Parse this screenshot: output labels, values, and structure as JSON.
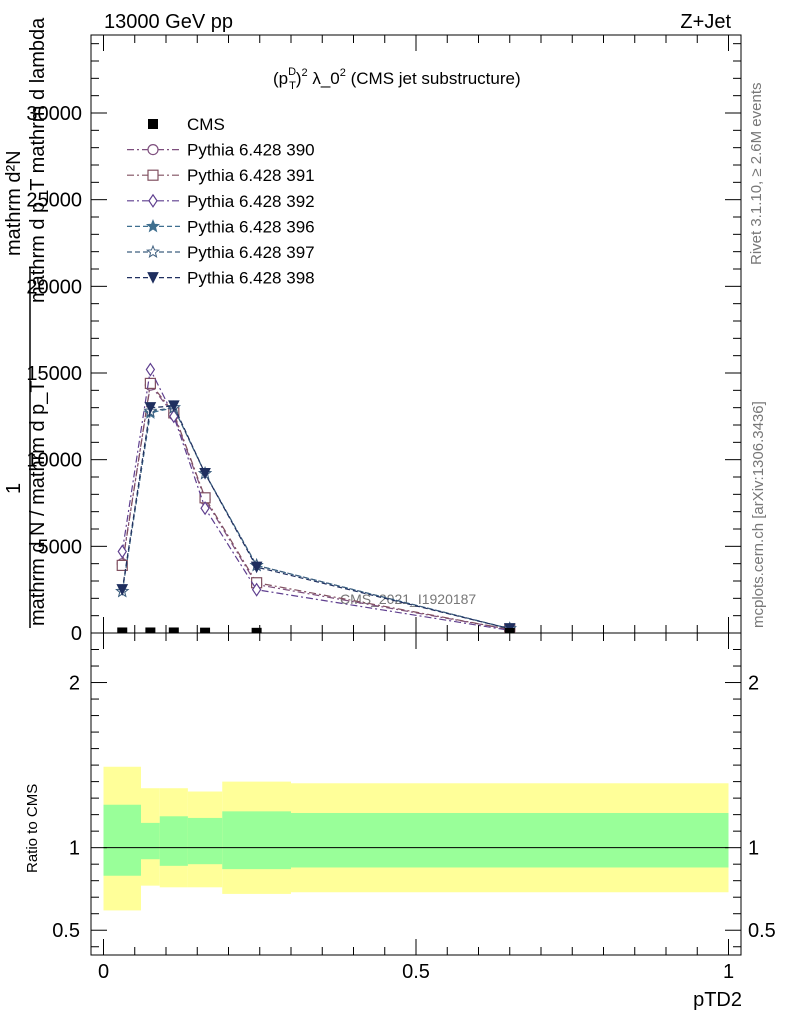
{
  "header": {
    "energy_label": "13000 GeV pp",
    "process_label": "Z+Jet"
  },
  "side_labels": {
    "rivet": "Rivet 3.1.10, ≥ 2.6M events",
    "mcplots": "mcplots.cern.ch [arXiv:1306.3436]"
  },
  "watermark": "CMS_2021_I1920187",
  "chart_data": {
    "type": "line",
    "title_parts": {
      "p": "(p",
      "sup1": "D",
      "sub1": "T",
      "close": ")",
      "sup2": "2",
      "mid": " λ_0",
      "sup3": "2",
      "tail": " (CMS jet substructure)"
    },
    "ylabel_upper": "mathrm d²N",
    "ylabel_upper_sub": "mathrm d p_T mathrm d lambda",
    "ylabel_one": "1",
    "ylabel_lower": "mathrm d N / mathrm d p_T",
    "ylabel_lower_sub": "mathrm d p_T",
    "ylabel_lower_tail": "mathrm d lambda",
    "xlabel": "pTD2",
    "ratio_ylabel": "Ratio to CMS",
    "xlim": [
      -0.02,
      1.02
    ],
    "ylim": [
      0,
      34500
    ],
    "ratio_ylim": [
      0.35,
      2.3
    ],
    "main_yticks": [
      0,
      5000,
      10000,
      15000,
      20000,
      25000,
      30000
    ],
    "main_ytick_labels": [
      "0",
      "5000",
      "10000",
      "15000",
      "20000",
      "25000",
      "30000"
    ],
    "ratio_yticks": [
      0.5,
      1,
      2
    ],
    "ratio_ytick_labels": [
      "0.5",
      "1",
      "2"
    ],
    "xticks": [
      0,
      0.5,
      1
    ],
    "xtick_labels": [
      "0",
      "0.5",
      "1"
    ],
    "bin_edges": [
      0,
      0.06,
      0.09,
      0.135,
      0.19,
      0.3,
      1.0
    ],
    "data": {
      "name": "CMS",
      "x": [
        0.03,
        0.075,
        0.1125,
        0.1625,
        0.245,
        0.65
      ],
      "y": [
        30,
        30,
        30,
        20,
        10,
        1
      ]
    },
    "ratio_band_inner": [
      [
        0.83,
        1.26
      ],
      [
        0.93,
        1.15
      ],
      [
        0.89,
        1.19
      ],
      [
        0.9,
        1.18
      ],
      [
        0.87,
        1.22
      ],
      [
        0.88,
        1.21
      ]
    ],
    "ratio_band_outer": [
      [
        0.62,
        1.49
      ],
      [
        0.77,
        1.36
      ],
      [
        0.76,
        1.36
      ],
      [
        0.76,
        1.34
      ],
      [
        0.72,
        1.4
      ],
      [
        0.73,
        1.39
      ]
    ],
    "series": [
      {
        "name": "Pythia 6.428 390",
        "color": "#7e4f7e",
        "marker": "circle-open",
        "dash": "7,3,2,3",
        "x": [
          0.03,
          0.075,
          0.1125,
          0.1625,
          0.245,
          0.65
        ],
        "y": [
          4000,
          14300,
          12600,
          7700,
          2800,
          200
        ]
      },
      {
        "name": "Pythia 6.428 391",
        "color": "#805060",
        "marker": "square-open",
        "dash": "7,3,2,3",
        "x": [
          0.03,
          0.075,
          0.1125,
          0.1625,
          0.245,
          0.65
        ],
        "y": [
          3900,
          14400,
          12700,
          7800,
          2900,
          200
        ]
      },
      {
        "name": "Pythia 6.428 392",
        "color": "#5f3f8f",
        "marker": "diamond-open",
        "dash": "7,3,2,3",
        "x": [
          0.03,
          0.075,
          0.1125,
          0.1625,
          0.245,
          0.65
        ],
        "y": [
          4700,
          15200,
          12500,
          7200,
          2500,
          150
        ]
      },
      {
        "name": "Pythia 6.428 396",
        "color": "#3f6f8f",
        "marker": "star-filled",
        "dash": "5,3",
        "x": [
          0.03,
          0.075,
          0.1125,
          0.1625,
          0.245,
          0.65
        ],
        "y": [
          2400,
          12700,
          13000,
          9200,
          3900,
          250
        ]
      },
      {
        "name": "Pythia 6.428 397",
        "color": "#3f5f7f",
        "marker": "star-open",
        "dash": "5,3",
        "x": [
          0.03,
          0.075,
          0.1125,
          0.1625,
          0.245,
          0.65
        ],
        "y": [
          2400,
          12800,
          13000,
          9200,
          3900,
          250
        ]
      },
      {
        "name": "Pythia 6.428 398",
        "color": "#1f2f5f",
        "marker": "triangle-down-filled",
        "dash": "5,3",
        "x": [
          0.03,
          0.075,
          0.1125,
          0.1625,
          0.245,
          0.65
        ],
        "y": [
          2500,
          13000,
          13100,
          9200,
          3800,
          250
        ]
      }
    ],
    "colors": {
      "band_inner": "#99ff99",
      "band_outer": "#ffff99"
    },
    "grid": false,
    "legend_position": "top-left"
  }
}
